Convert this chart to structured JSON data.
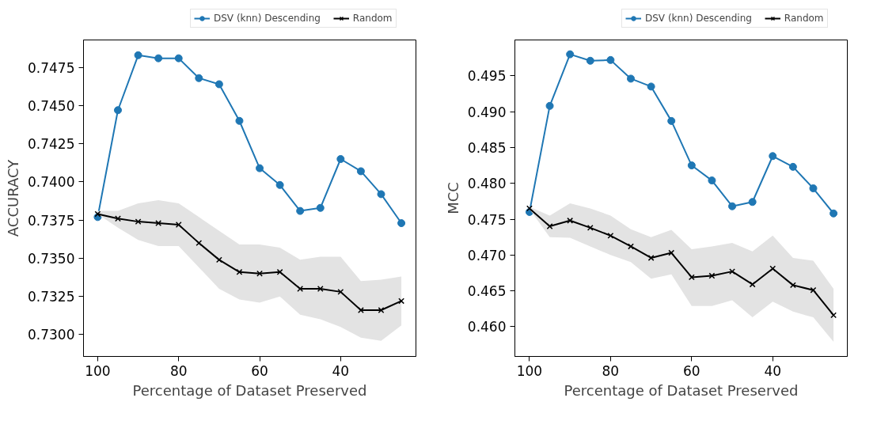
{
  "chart_data": [
    {
      "type": "line",
      "xlabel": "Percentage of Dataset Preserved",
      "ylabel": "ACCURACY",
      "x": [
        100,
        95,
        90,
        85,
        80,
        75,
        70,
        65,
        60,
        55,
        50,
        45,
        40,
        35,
        30,
        25
      ],
      "xlim": [
        103.5,
        21.4
      ],
      "xticks": [
        100,
        80,
        60,
        40
      ],
      "ylim": [
        0.72857,
        0.7493
      ],
      "yticks": [
        {
          "value": 0.73,
          "label": "0.7300"
        },
        {
          "value": 0.7325,
          "label": "0.7325"
        },
        {
          "value": 0.735,
          "label": "0.7350"
        },
        {
          "value": 0.7375,
          "label": "0.7375"
        },
        {
          "value": 0.74,
          "label": "0.7400"
        },
        {
          "value": 0.7425,
          "label": "0.7425"
        },
        {
          "value": 0.745,
          "label": "0.7450"
        },
        {
          "value": 0.7475,
          "label": "0.7475"
        }
      ],
      "grid": false,
      "legend": "top",
      "line_style": "solid",
      "series": [
        {
          "name": "DSV (knn) Descending",
          "color": "#1f77b4",
          "marker": "circle",
          "values": [
            0.7377,
            0.7447,
            0.7483,
            0.7481,
            0.7481,
            0.7468,
            0.7464,
            0.744,
            0.7409,
            0.7398,
            0.7381,
            0.7383,
            0.7415,
            0.7407,
            0.7392,
            0.7373
          ]
        },
        {
          "name": "Random",
          "color": "#000000",
          "marker": "cross",
          "values": [
            0.7379,
            0.7376,
            0.7374,
            0.7373,
            0.7372,
            0.736,
            0.7349,
            0.7341,
            0.734,
            0.7341,
            0.733,
            0.733,
            0.7328,
            0.7316,
            0.7316,
            0.7322
          ],
          "lower": [
            0.7379,
            0.737,
            0.7362,
            0.7358,
            0.7358,
            0.7344,
            0.733,
            0.7323,
            0.7321,
            0.7325,
            0.7313,
            0.731,
            0.7305,
            0.7298,
            0.7296,
            0.7306
          ],
          "upper": [
            0.7381,
            0.7381,
            0.7386,
            0.7388,
            0.7386,
            0.7377,
            0.7368,
            0.7359,
            0.7359,
            0.7357,
            0.7349,
            0.7351,
            0.7351,
            0.7335,
            0.7336,
            0.7338
          ]
        }
      ]
    },
    {
      "type": "line",
      "xlabel": "Percentage of Dataset Preserved",
      "ylabel": "MCC",
      "x": [
        100,
        95,
        90,
        85,
        80,
        75,
        70,
        65,
        60,
        55,
        50,
        45,
        40,
        35,
        30,
        25
      ],
      "xlim": [
        103.6,
        21.6
      ],
      "xticks": [
        100,
        80,
        60,
        40
      ],
      "ylim": [
        0.45585,
        0.5
      ],
      "yticks": [
        {
          "value": 0.46,
          "label": "0.460"
        },
        {
          "value": 0.465,
          "label": "0.465"
        },
        {
          "value": 0.47,
          "label": "0.470"
        },
        {
          "value": 0.475,
          "label": "0.475"
        },
        {
          "value": 0.48,
          "label": "0.480"
        },
        {
          "value": 0.485,
          "label": "0.485"
        },
        {
          "value": 0.49,
          "label": "0.490"
        },
        {
          "value": 0.495,
          "label": "0.495"
        }
      ],
      "grid": false,
      "legend": "top",
      "line_style": "solid",
      "series": [
        {
          "name": "DSV (knn) Descending",
          "color": "#1f77b4",
          "marker": "circle",
          "values": [
            0.476,
            0.4908,
            0.498,
            0.4971,
            0.4972,
            0.4946,
            0.4935,
            0.4887,
            0.4825,
            0.4804,
            0.4768,
            0.4774,
            0.4838,
            0.4823,
            0.4793,
            0.4758
          ]
        },
        {
          "name": "Random",
          "color": "#000000",
          "marker": "cross",
          "values": [
            0.4765,
            0.474,
            0.4748,
            0.4738,
            0.4727,
            0.4712,
            0.4696,
            0.4703,
            0.4669,
            0.4671,
            0.4677,
            0.4659,
            0.4681,
            0.4658,
            0.4651,
            0.4616
          ],
          "lower": [
            0.4764,
            0.4725,
            0.4724,
            0.4712,
            0.47,
            0.469,
            0.4667,
            0.4673,
            0.4629,
            0.4629,
            0.4637,
            0.4613,
            0.4635,
            0.4621,
            0.4613,
            0.4579
          ],
          "upper": [
            0.4767,
            0.4755,
            0.4772,
            0.4765,
            0.4755,
            0.4736,
            0.4725,
            0.4735,
            0.4708,
            0.4712,
            0.4717,
            0.4705,
            0.4727,
            0.4696,
            0.4692,
            0.4653
          ]
        }
      ]
    }
  ]
}
